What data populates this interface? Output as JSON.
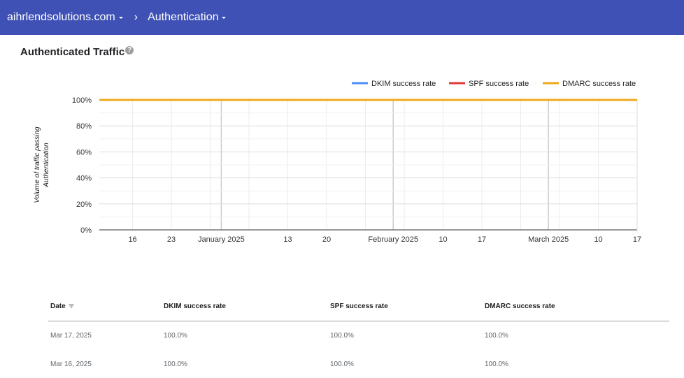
{
  "breadcrumb": {
    "domain": "aihrlendsolutions.com",
    "separator": "›",
    "section": "Authentication"
  },
  "section_title": "Authenticated Traffic",
  "help_icon": "help-icon",
  "chart_data": {
    "type": "line",
    "title": "",
    "xlabel": "",
    "ylabel": "Volume of traffic passing Authentication",
    "ylim": [
      0,
      100
    ],
    "y_ticks": [
      "0%",
      "20%",
      "40%",
      "60%",
      "80%",
      "100%"
    ],
    "x_range": [
      "2024-12-10",
      "2025-03-17"
    ],
    "x_ticks": [
      {
        "date": "2024-12-16",
        "label": "16"
      },
      {
        "date": "2024-12-23",
        "label": "23"
      },
      {
        "date": "2025-01-01",
        "label": "January 2025"
      },
      {
        "date": "2025-01-13",
        "label": "13"
      },
      {
        "date": "2025-01-20",
        "label": "20"
      },
      {
        "date": "2025-02-01",
        "label": "February 2025"
      },
      {
        "date": "2025-02-10",
        "label": "10"
      },
      {
        "date": "2025-02-17",
        "label": "17"
      },
      {
        "date": "2025-03-01",
        "label": "March 2025"
      },
      {
        "date": "2025-03-10",
        "label": "10"
      },
      {
        "date": "2025-03-17",
        "label": "17"
      }
    ],
    "legend_position": "top-right",
    "series": [
      {
        "name": "DKIM success rate",
        "color": "#4e8ef7",
        "x": [
          "2024-12-10",
          "2025-03-17"
        ],
        "values": [
          100,
          100
        ]
      },
      {
        "name": "SPF success rate",
        "color": "#e53935",
        "x": [
          "2024-12-10",
          "2025-03-17"
        ],
        "values": [
          100,
          100
        ]
      },
      {
        "name": "DMARC success rate",
        "color": "#f0a91d",
        "x": [
          "2024-12-10",
          "2025-03-17"
        ],
        "values": [
          100,
          100
        ]
      }
    ],
    "grid": true
  },
  "table": {
    "columns": [
      {
        "label": "Date",
        "sorted": true
      },
      {
        "label": "DKIM success rate"
      },
      {
        "label": "SPF success rate"
      },
      {
        "label": "DMARC success rate"
      }
    ],
    "rows": [
      [
        "Mar 17, 2025",
        "100.0%",
        "100.0%",
        "100.0%"
      ],
      [
        "Mar 16, 2025",
        "100.0%",
        "100.0%",
        "100.0%"
      ]
    ]
  }
}
